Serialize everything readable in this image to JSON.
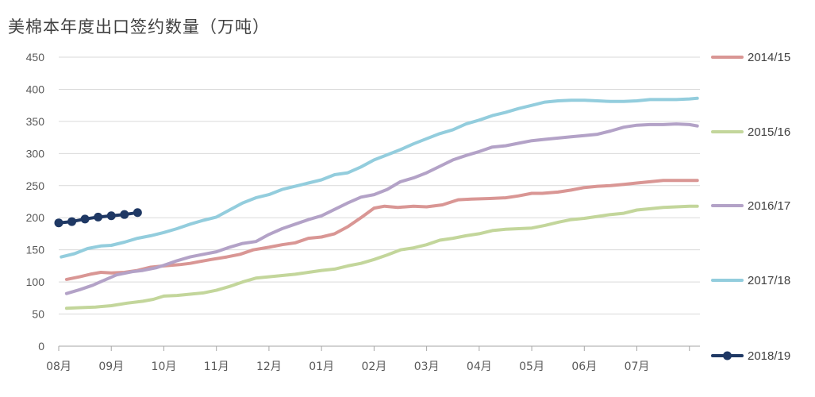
{
  "chart_data": {
    "type": "line",
    "title": "美棉本年度出口签约数量（万吨）",
    "xlabel": "",
    "ylabel": "",
    "ylim": [
      0,
      450
    ],
    "yticks": [
      0,
      50,
      100,
      150,
      200,
      250,
      300,
      350,
      400,
      450
    ],
    "xlim": [
      0,
      12.2
    ],
    "x_tick_labels": [
      "08月",
      "09月",
      "10月",
      "11月",
      "12月",
      "01月",
      "02月",
      "03月",
      "04月",
      "05月",
      "06月",
      "07月"
    ],
    "x_ticks": [
      0,
      1,
      2,
      3,
      4,
      5,
      6,
      7,
      8,
      9,
      10,
      11,
      12
    ],
    "grid": "horizontal",
    "legend_position": "right",
    "series": [
      {
        "name": "2014/15",
        "color": "#D99694",
        "marker": false,
        "x": [
          0.15,
          0.4,
          0.6,
          0.8,
          1.0,
          1.25,
          1.5,
          1.75,
          2.0,
          2.3,
          2.5,
          2.7,
          2.9,
          3.2,
          3.45,
          3.7,
          4.0,
          4.25,
          4.5,
          4.75,
          5.0,
          5.25,
          5.5,
          5.75,
          6.0,
          6.2,
          6.45,
          6.75,
          7.0,
          7.3,
          7.6,
          7.85,
          8.2,
          8.5,
          8.75,
          9.0,
          9.2,
          9.5,
          9.75,
          10.0,
          10.25,
          10.5,
          10.75,
          11.0,
          11.25,
          11.5,
          11.75,
          12.0,
          12.15
        ],
        "y": [
          104,
          108,
          112,
          115,
          114,
          115,
          118,
          123,
          125,
          127,
          129,
          132,
          135,
          139,
          143,
          150,
          154,
          158,
          161,
          168,
          170,
          175,
          186,
          200,
          215,
          218,
          216,
          218,
          217,
          220,
          228,
          229,
          230,
          231,
          234,
          238,
          238,
          240,
          243,
          247,
          249,
          250,
          252,
          254,
          256,
          258,
          258,
          258,
          258
        ]
      },
      {
        "name": "2015/16",
        "color": "#C3D69B",
        "marker": false,
        "x": [
          0.15,
          0.4,
          0.7,
          1.0,
          1.3,
          1.6,
          1.8,
          2.0,
          2.25,
          2.5,
          2.75,
          3.0,
          3.25,
          3.5,
          3.75,
          4.0,
          4.25,
          4.5,
          4.75,
          5.0,
          5.25,
          5.5,
          5.75,
          6.0,
          6.25,
          6.5,
          6.75,
          7.0,
          7.25,
          7.5,
          7.75,
          8.0,
          8.25,
          8.5,
          8.75,
          9.0,
          9.25,
          9.5,
          9.75,
          10.0,
          10.25,
          10.5,
          10.75,
          11.0,
          11.25,
          11.5,
          11.75,
          12.0,
          12.15
        ],
        "y": [
          59,
          60,
          61,
          63,
          67,
          70,
          73,
          78,
          79,
          81,
          83,
          87,
          93,
          100,
          106,
          108,
          110,
          112,
          115,
          118,
          120,
          125,
          129,
          135,
          142,
          150,
          153,
          158,
          165,
          168,
          172,
          175,
          180,
          182,
          183,
          184,
          188,
          193,
          197,
          199,
          202,
          205,
          207,
          212,
          214,
          216,
          217,
          218,
          218
        ]
      },
      {
        "name": "2016/17",
        "color": "#B3A2C7",
        "marker": false,
        "x": [
          0.15,
          0.4,
          0.65,
          0.9,
          1.1,
          1.4,
          1.6,
          1.85,
          2.0,
          2.25,
          2.5,
          2.75,
          3.0,
          3.25,
          3.5,
          3.75,
          4.0,
          4.25,
          4.5,
          4.75,
          5.0,
          5.25,
          5.5,
          5.75,
          6.0,
          6.25,
          6.5,
          6.75,
          7.0,
          7.25,
          7.5,
          7.75,
          8.0,
          8.25,
          8.5,
          8.75,
          9.0,
          9.25,
          9.5,
          9.75,
          10.0,
          10.25,
          10.5,
          10.75,
          11.0,
          11.25,
          11.5,
          11.75,
          12.0,
          12.15
        ],
        "y": [
          82,
          88,
          95,
          104,
          111,
          116,
          118,
          122,
          126,
          133,
          139,
          143,
          147,
          154,
          160,
          163,
          174,
          183,
          190,
          197,
          203,
          213,
          223,
          232,
          236,
          244,
          256,
          262,
          270,
          280,
          290,
          297,
          303,
          310,
          312,
          316,
          320,
          322,
          324,
          326,
          328,
          330,
          335,
          341,
          344,
          345,
          345,
          346,
          345,
          343
        ]
      },
      {
        "name": "2017/18",
        "color": "#93CDDD",
        "marker": false,
        "x": [
          0.05,
          0.3,
          0.55,
          0.8,
          1.0,
          1.25,
          1.5,
          1.75,
          2.0,
          2.25,
          2.5,
          2.75,
          3.0,
          3.25,
          3.5,
          3.75,
          4.0,
          4.25,
          4.5,
          4.75,
          5.0,
          5.25,
          5.5,
          5.75,
          6.0,
          6.25,
          6.5,
          6.75,
          7.0,
          7.25,
          7.5,
          7.75,
          8.0,
          8.25,
          8.5,
          8.75,
          9.0,
          9.25,
          9.5,
          9.75,
          10.0,
          10.25,
          10.5,
          10.75,
          11.0,
          11.25,
          11.5,
          11.75,
          12.0,
          12.15
        ],
        "y": [
          139,
          144,
          152,
          156,
          157,
          162,
          168,
          172,
          177,
          183,
          190,
          196,
          201,
          212,
          223,
          231,
          236,
          244,
          249,
          254,
          259,
          267,
          270,
          279,
          290,
          298,
          306,
          315,
          323,
          331,
          337,
          346,
          352,
          359,
          364,
          370,
          375,
          380,
          382,
          383,
          383,
          382,
          381,
          381,
          382,
          384,
          384,
          384,
          385,
          386
        ]
      },
      {
        "name": "2018/19",
        "color": "#1F3864",
        "marker": true,
        "x": [
          0.0,
          0.25,
          0.5,
          0.75,
          1.0,
          1.25,
          1.5
        ],
        "y": [
          192,
          194,
          198,
          201,
          203,
          205,
          208
        ]
      }
    ]
  }
}
